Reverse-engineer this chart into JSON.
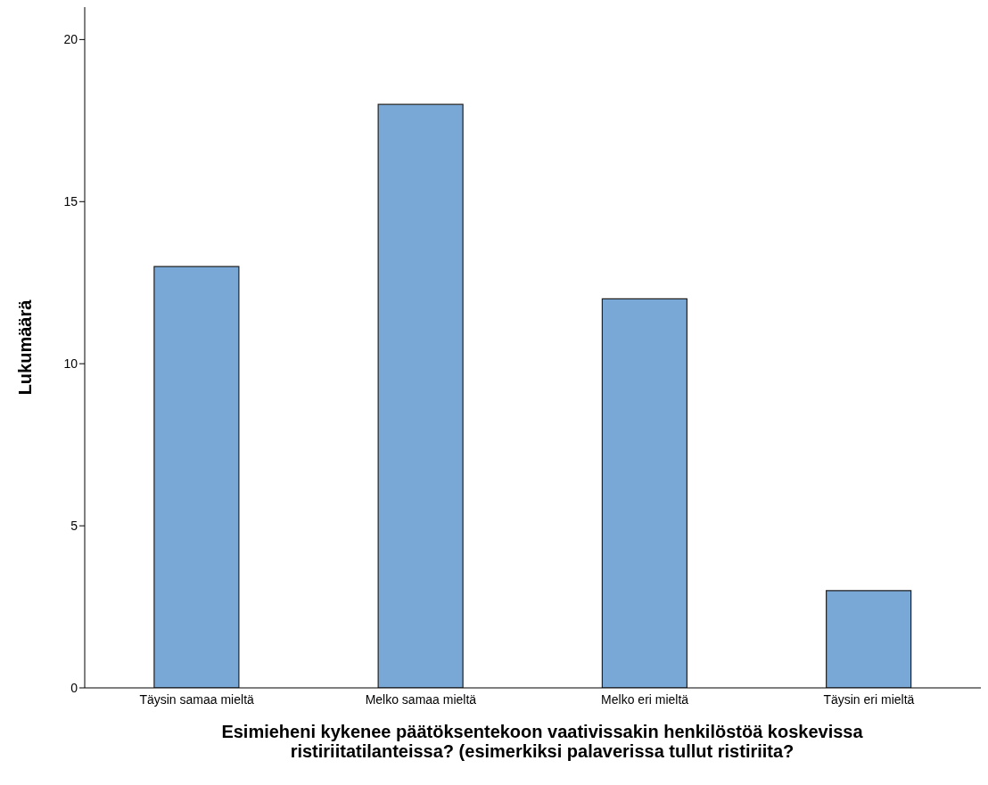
{
  "chart_data": {
    "type": "bar",
    "xlabel": "Esimieheni kykenee päätöksentekoon vaativissakin henkilöstöä koskevissa ristiriitatilanteissa? (esimerkiksi palaverissa tullut ristiriita?",
    "ylabel": "Lukumäärä",
    "categories": [
      "Täysin samaa mieltä",
      "Melko samaa mieltä",
      "Melko eri mieltä",
      "Täysin eri mieltä"
    ],
    "values": [
      13,
      18,
      12,
      3
    ],
    "color": "#79a8d6",
    "ylim": [
      0,
      21
    ],
    "yticks": [
      0,
      5,
      10,
      15,
      20
    ]
  }
}
